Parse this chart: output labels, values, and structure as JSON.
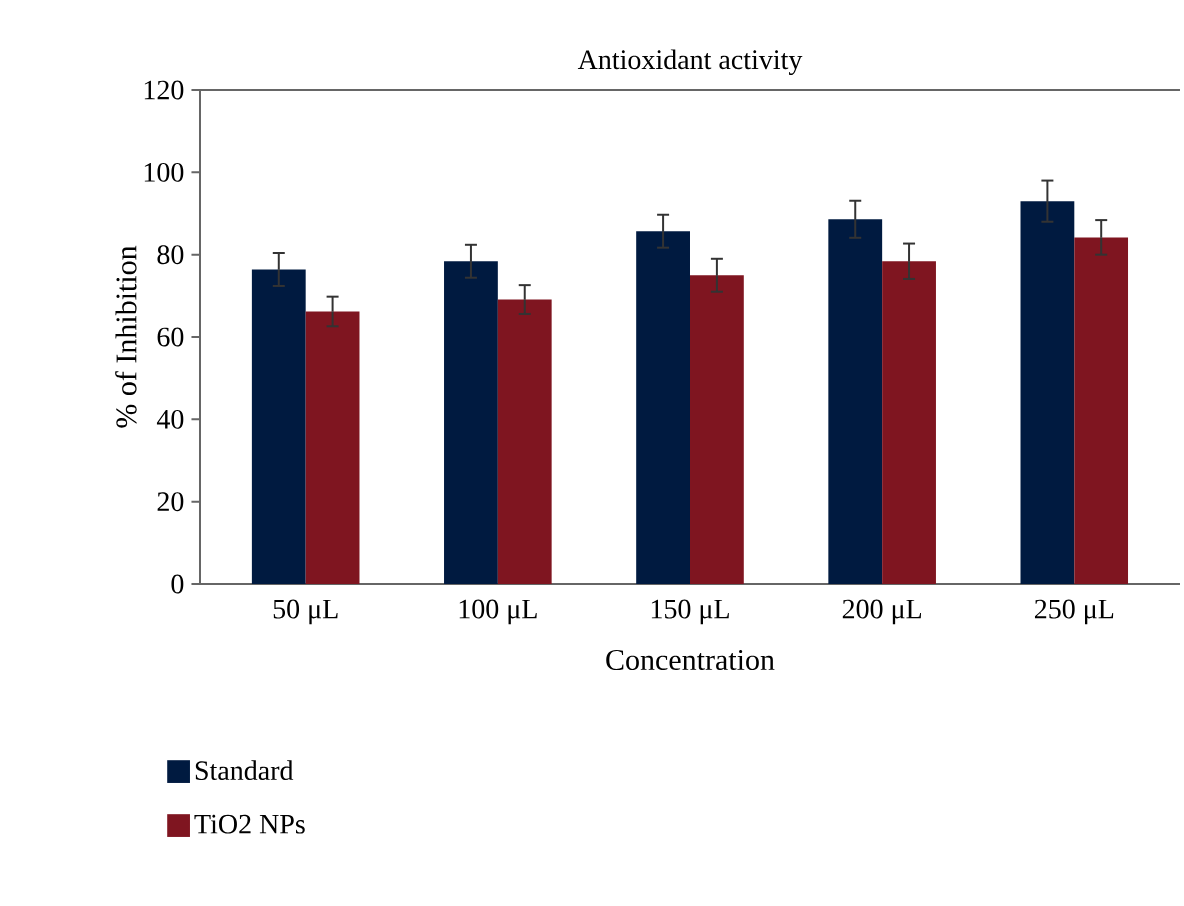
{
  "chart_data": {
    "type": "bar",
    "title": "Antioxidant activity",
    "xlabel": "Concentration",
    "ylabel": "% of Inhibition",
    "categories": [
      "50 μL",
      "100 μL",
      "150 μL",
      "200 μL",
      "250 μL"
    ],
    "series": [
      {
        "name": "Standard",
        "color": "#001a40",
        "values": [
          76.4,
          78.4,
          85.7,
          88.6,
          93.0
        ],
        "errors": [
          4,
          4,
          4,
          4.5,
          5
        ]
      },
      {
        "name": "TiO2 NPs",
        "color": "#7f1520",
        "values": [
          66.2,
          69.1,
          75.0,
          78.4,
          84.2
        ],
        "errors": [
          3.6,
          3.5,
          4,
          4.3,
          4.2
        ]
      }
    ],
    "ylim": [
      0,
      120
    ],
    "yticks": [
      0,
      20,
      40,
      60,
      80,
      100,
      120
    ],
    "grid": false,
    "legend": "bottom left"
  }
}
